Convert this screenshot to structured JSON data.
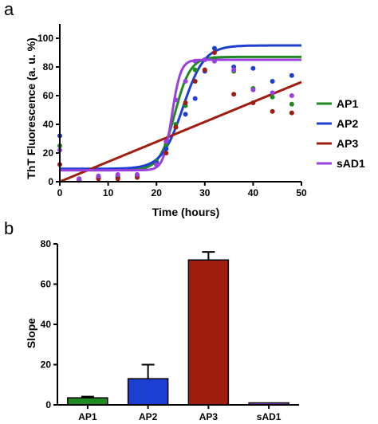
{
  "panel_a": {
    "letter": "a"
  },
  "panel_b": {
    "letter": "b"
  },
  "colors": {
    "AP1": "#1f8a22",
    "AP2": "#1c3fd1",
    "AP3": "#a01e10",
    "sAD1": "#9b3fe0",
    "axis": "#000000"
  },
  "chart_data": [
    {
      "type": "scatter",
      "xlabel": "Time (hours)",
      "ylabel": "ThT Fluorescence (a. u. %)",
      "xlim": [
        0,
        50
      ],
      "ylim": [
        0,
        110
      ],
      "xticks": [
        "0",
        "10",
        "20",
        "30",
        "40",
        "50"
      ],
      "yticks": [
        "0",
        "20",
        "40",
        "60",
        "80",
        "100"
      ],
      "legend_position": "right",
      "series": [
        {
          "name": "AP1",
          "points": [
            [
              0,
              25
            ],
            [
              4,
              1
            ],
            [
              8,
              3
            ],
            [
              12,
              4
            ],
            [
              16,
              5
            ],
            [
              20,
              14
            ],
            [
              22,
              26
            ],
            [
              24,
              40
            ],
            [
              26,
              53
            ],
            [
              28,
              78
            ],
            [
              30,
              85
            ],
            [
              32,
              86
            ],
            [
              36,
              77
            ],
            [
              40,
              65
            ],
            [
              44,
              59
            ],
            [
              48,
              54
            ]
          ],
          "fit": {
            "kind": "sigmoid",
            "bottom": 8,
            "top": 87,
            "midpoint": 23.8,
            "rate": 1.6
          }
        },
        {
          "name": "AP2",
          "points": [
            [
              0,
              32
            ],
            [
              4,
              2
            ],
            [
              8,
              3
            ],
            [
              12,
              3
            ],
            [
              16,
              4
            ],
            [
              20,
              13
            ],
            [
              22,
              23
            ],
            [
              24,
              38
            ],
            [
              26,
              47
            ],
            [
              28,
              58
            ],
            [
              30,
              77
            ],
            [
              32,
              93
            ],
            [
              36,
              80
            ],
            [
              40,
              79
            ],
            [
              44,
              70
            ],
            [
              48,
              74
            ]
          ],
          "fit": {
            "kind": "sigmoid",
            "bottom": 9,
            "top": 95,
            "midpoint": 25.5,
            "rate": 2.2
          }
        },
        {
          "name": "AP3",
          "points": [
            [
              0,
              12
            ],
            [
              4,
              1
            ],
            [
              8,
              2
            ],
            [
              12,
              2
            ],
            [
              16,
              3
            ],
            [
              20,
              12
            ],
            [
              22,
              20
            ],
            [
              24,
              38
            ],
            [
              26,
              55
            ],
            [
              28,
              70
            ],
            [
              30,
              78
            ],
            [
              32,
              90
            ],
            [
              36,
              61
            ],
            [
              40,
              55
            ],
            [
              44,
              49
            ],
            [
              48,
              48
            ]
          ],
          "fit": {
            "kind": "linear",
            "slope": 1.39,
            "intercept": 0
          }
        },
        {
          "name": "sAD1",
          "points": [
            [
              0,
              22
            ],
            [
              4,
              2
            ],
            [
              8,
              4
            ],
            [
              12,
              5
            ],
            [
              16,
              5
            ],
            [
              20,
              12
            ],
            [
              22,
              28
            ],
            [
              24,
              57
            ],
            [
              26,
              70
            ],
            [
              28,
              84
            ],
            [
              30,
              85
            ],
            [
              32,
              84
            ],
            [
              36,
              78
            ],
            [
              40,
              64
            ],
            [
              44,
              62
            ],
            [
              48,
              60
            ]
          ],
          "fit": {
            "kind": "sigmoid",
            "bottom": 8,
            "top": 85,
            "midpoint": 23.2,
            "rate": 0.9
          }
        }
      ]
    },
    {
      "type": "bar",
      "xlabel": "",
      "ylabel": "Slope",
      "ylim": [
        0,
        80
      ],
      "yticks": [
        "0",
        "20",
        "40",
        "60",
        "80"
      ],
      "categories": [
        "AP1",
        "AP2",
        "AP3",
        "sAD1"
      ],
      "values": [
        3.5,
        13,
        72,
        1
      ],
      "errors": [
        0.6,
        7,
        4,
        0
      ]
    }
  ]
}
